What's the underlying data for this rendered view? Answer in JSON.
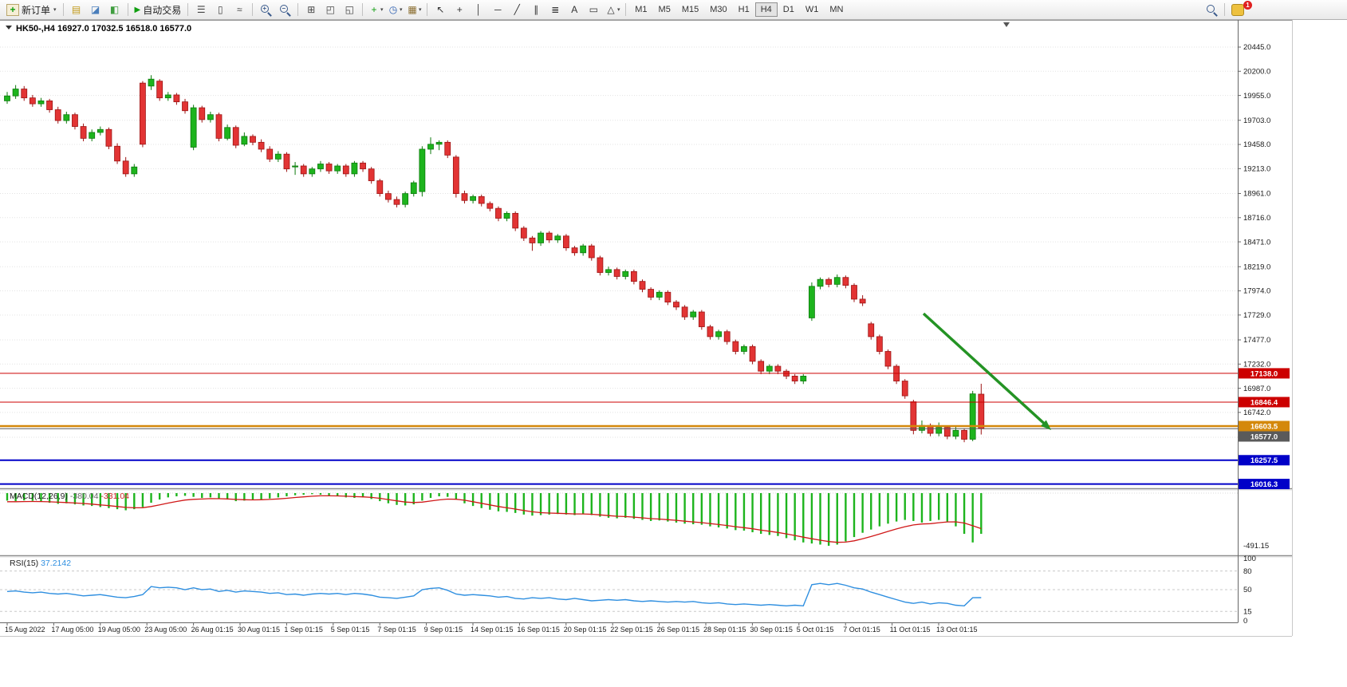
{
  "toolbar": {
    "new_order": {
      "label": "新订单"
    },
    "autotrading": {
      "label": "自动交易"
    },
    "pre_groups": [
      [
        {
          "name": "market-watch-icon",
          "glyph": "▤",
          "color": "#c29a1a"
        },
        {
          "name": "data-window-icon",
          "glyph": "◪",
          "color": "#4a7ebb"
        },
        {
          "name": "navigator-icon",
          "glyph": "◧",
          "color": "#3f9e3f"
        }
      ]
    ],
    "icon_groups": [
      [
        {
          "name": "bar-chart-icon",
          "glyph": "☰",
          "color": "#444"
        },
        {
          "name": "candlestick-chart-icon",
          "glyph": "▯",
          "color": "#444"
        },
        {
          "name": "line-chart-icon",
          "glyph": "≈",
          "color": "#444"
        }
      ],
      [
        {
          "name": "zoom-in-icon",
          "type": "mag",
          "char": "+"
        },
        {
          "name": "zoom-out-icon",
          "type": "mag",
          "char": "−"
        }
      ],
      [
        {
          "name": "tile-windows-icon",
          "glyph": "⊞",
          "color": "#444"
        },
        {
          "name": "cascade-windows-icon",
          "glyph": "◰",
          "color": "#444"
        },
        {
          "name": "arrange-windows-icon",
          "glyph": "◱",
          "color": "#444"
        }
      ],
      [
        {
          "name": "add-indicator-icon",
          "glyph": "+",
          "color": "#0f9e0f",
          "caret": true
        },
        {
          "name": "period-icon",
          "glyph": "◷",
          "color": "#2a5db0",
          "caret": true
        },
        {
          "name": "template-icon",
          "glyph": "▦",
          "color": "#8a6d2f",
          "caret": true
        }
      ],
      [
        {
          "name": "cursor-icon",
          "glyph": "↖",
          "color": "#333"
        },
        {
          "name": "crosshair-icon",
          "glyph": "+",
          "color": "#333"
        },
        {
          "name": "vertical-line-icon",
          "glyph": "│",
          "color": "#333"
        },
        {
          "name": "horizontal-line-icon",
          "glyph": "─",
          "color": "#333"
        },
        {
          "name": "trendline-icon",
          "glyph": "╱",
          "color": "#333"
        },
        {
          "name": "channel-icon",
          "glyph": "∥",
          "color": "#333"
        },
        {
          "name": "fibonacci-icon",
          "glyph": "≣",
          "color": "#333"
        },
        {
          "name": "text-icon",
          "glyph": "A",
          "color": "#333"
        },
        {
          "name": "text-label-icon",
          "glyph": "▭",
          "color": "#333"
        },
        {
          "name": "shapes-icon",
          "glyph": "△",
          "color": "#333",
          "caret": true
        }
      ]
    ],
    "timeframes": {
      "items": [
        "M1",
        "M5",
        "M15",
        "M30",
        "H1",
        "H4",
        "D1",
        "W1",
        "MN"
      ],
      "active": "H4"
    },
    "community": {
      "badge": "1"
    }
  },
  "chart": {
    "title": {
      "symbol": "HK50-,H4",
      "open": "16927.0",
      "high": "17032.5",
      "low": "16518.0",
      "close": "16577.0"
    },
    "colors": {
      "up": "#1db41d",
      "up_stroke": "#0d7a0d",
      "down": "#e23434",
      "down_stroke": "#9d1414",
      "arrow": "#249324",
      "rsi_line": "#2f8fe0",
      "macd_bar": "#1db41d",
      "macd_signal": "#d01818"
    },
    "hlines": [
      {
        "price": 17138.0,
        "label": "17138.0",
        "color": "#cc0000",
        "width": 1
      },
      {
        "price": 16846.4,
        "label": "16846.4",
        "color": "#cc0000",
        "width": 1
      },
      {
        "price": 16603.5,
        "label": "16603.5",
        "color": "#d4880b",
        "width": 2.5
      },
      {
        "price": 16577.0,
        "label": "16577.0",
        "color": "#5a5a5a",
        "width": 1
      },
      {
        "price": 16257.5,
        "label": "16257.5",
        "color": "#0000c8",
        "width": 2
      },
      {
        "price": 16016.3,
        "label": "16016.3",
        "color": "#0000c8",
        "width": 2
      }
    ]
  },
  "macd": {
    "name": "MACD(12,26,9)",
    "main": "-380.04",
    "signal": "-331.04",
    "min_label": "-491.15"
  },
  "rsi": {
    "name": "RSI(15)",
    "value": "37.2142",
    "levels": [
      "100",
      "80",
      "50",
      "15",
      "0"
    ]
  },
  "chart_data": {
    "type": "candlestick",
    "symbol": "HK50-",
    "period": "H4",
    "y_ticks": [
      "20445.0",
      "20200.0",
      "19955.0",
      "19703.0",
      "19458.0",
      "19213.0",
      "18961.0",
      "18716.0",
      "18471.0",
      "18219.0",
      "17974.0",
      "17729.0",
      "17477.0",
      "17232.0",
      "16987.0",
      "16742.0",
      "16490.0"
    ],
    "x_labels": [
      "15 Aug 2022",
      "17 Aug 05:00",
      "19 Aug 05:00",
      "23 Aug 05:00",
      "26 Aug 01:15",
      "30 Aug 01:15",
      "1 Sep 01:15",
      "5 Sep 01:15",
      "7 Sep 01:15",
      "9 Sep 01:15",
      "14 Sep 01:15",
      "16 Sep 01:15",
      "20 Sep 01:15",
      "22 Sep 01:15",
      "26 Sep 01:15",
      "28 Sep 01:15",
      "30 Sep 01:15",
      "5 Oct 01:15",
      "7 Oct 01:15",
      "11 Oct 01:15",
      "13 Oct 01:15"
    ],
    "candles": [
      [
        19900,
        19990,
        19870,
        19950
      ],
      [
        19950,
        20060,
        19920,
        20020
      ],
      [
        20020,
        20050,
        19900,
        19930
      ],
      [
        19930,
        19960,
        19840,
        19870
      ],
      [
        19870,
        19930,
        19840,
        19900
      ],
      [
        19900,
        19920,
        19780,
        19810
      ],
      [
        19810,
        19840,
        19670,
        19700
      ],
      [
        19700,
        19790,
        19670,
        19760
      ],
      [
        19760,
        19780,
        19610,
        19640
      ],
      [
        19640,
        19670,
        19490,
        19520
      ],
      [
        19520,
        19610,
        19490,
        19580
      ],
      [
        19580,
        19640,
        19550,
        19610
      ],
      [
        19610,
        19630,
        19410,
        19440
      ],
      [
        19440,
        19470,
        19260,
        19290
      ],
      [
        19290,
        19330,
        19130,
        19160
      ],
      [
        19160,
        19260,
        19130,
        19230
      ],
      [
        20080,
        20100,
        19430,
        19460
      ],
      [
        20050,
        20160,
        20010,
        20120
      ],
      [
        20100,
        20120,
        19900,
        19930
      ],
      [
        19930,
        19990,
        19900,
        19960
      ],
      [
        19960,
        19980,
        19860,
        19890
      ],
      [
        19890,
        19920,
        19770,
        19800
      ],
      [
        19430,
        19860,
        19400,
        19830
      ],
      [
        19830,
        19850,
        19680,
        19710
      ],
      [
        19710,
        19790,
        19680,
        19760
      ],
      [
        19760,
        19780,
        19490,
        19520
      ],
      [
        19520,
        19660,
        19500,
        19630
      ],
      [
        19630,
        19650,
        19420,
        19450
      ],
      [
        19460,
        19580,
        19440,
        19540
      ],
      [
        19540,
        19560,
        19450,
        19480
      ],
      [
        19480,
        19510,
        19380,
        19410
      ],
      [
        19410,
        19440,
        19280,
        19310
      ],
      [
        19310,
        19390,
        19280,
        19360
      ],
      [
        19360,
        19380,
        19180,
        19210
      ],
      [
        19230,
        19280,
        19150,
        19240
      ],
      [
        19240,
        19260,
        19130,
        19160
      ],
      [
        19160,
        19230,
        19130,
        19210
      ],
      [
        19210,
        19290,
        19180,
        19260
      ],
      [
        19260,
        19280,
        19160,
        19190
      ],
      [
        19190,
        19260,
        19160,
        19240
      ],
      [
        19240,
        19260,
        19130,
        19160
      ],
      [
        19160,
        19290,
        19130,
        19270
      ],
      [
        19270,
        19290,
        19180,
        19210
      ],
      [
        19210,
        19230,
        19060,
        19090
      ],
      [
        19090,
        19110,
        18930,
        18960
      ],
      [
        18960,
        18990,
        18870,
        18900
      ],
      [
        18900,
        18930,
        18820,
        18850
      ],
      [
        18850,
        18980,
        18820,
        18960
      ],
      [
        18960,
        19090,
        18930,
        19070
      ],
      [
        18980,
        19440,
        18930,
        19410
      ],
      [
        19410,
        19530,
        19360,
        19460
      ],
      [
        19460,
        19500,
        19400,
        19480
      ],
      [
        19480,
        19500,
        19320,
        19350
      ],
      [
        19330,
        19350,
        18920,
        18960
      ],
      [
        18960,
        18990,
        18860,
        18890
      ],
      [
        18890,
        18950,
        18860,
        18930
      ],
      [
        18930,
        18950,
        18830,
        18860
      ],
      [
        18860,
        18880,
        18780,
        18810
      ],
      [
        18810,
        18830,
        18680,
        18710
      ],
      [
        18710,
        18780,
        18680,
        18760
      ],
      [
        18760,
        18780,
        18580,
        18610
      ],
      [
        18610,
        18630,
        18480,
        18510
      ],
      [
        18510,
        18530,
        18380,
        18460
      ],
      [
        18460,
        18580,
        18430,
        18560
      ],
      [
        18560,
        18580,
        18460,
        18490
      ],
      [
        18490,
        18550,
        18460,
        18530
      ],
      [
        18530,
        18550,
        18380,
        18410
      ],
      [
        18410,
        18430,
        18330,
        18360
      ],
      [
        18360,
        18450,
        18330,
        18430
      ],
      [
        18430,
        18450,
        18280,
        18310
      ],
      [
        18310,
        18330,
        18130,
        18160
      ],
      [
        18160,
        18220,
        18130,
        18190
      ],
      [
        18190,
        18210,
        18090,
        18120
      ],
      [
        18120,
        18190,
        18090,
        18170
      ],
      [
        18170,
        18190,
        18040,
        18070
      ],
      [
        18070,
        18090,
        17960,
        17990
      ],
      [
        17990,
        18010,
        17880,
        17910
      ],
      [
        17910,
        17980,
        17880,
        17960
      ],
      [
        17960,
        17980,
        17830,
        17860
      ],
      [
        17860,
        17880,
        17780,
        17810
      ],
      [
        17810,
        17830,
        17680,
        17710
      ],
      [
        17710,
        17780,
        17680,
        17760
      ],
      [
        17760,
        17780,
        17580,
        17610
      ],
      [
        17610,
        17630,
        17480,
        17510
      ],
      [
        17510,
        17580,
        17480,
        17560
      ],
      [
        17560,
        17580,
        17430,
        17460
      ],
      [
        17460,
        17480,
        17330,
        17360
      ],
      [
        17360,
        17430,
        17330,
        17410
      ],
      [
        17410,
        17430,
        17230,
        17260
      ],
      [
        17260,
        17280,
        17130,
        17160
      ],
      [
        17160,
        17230,
        17130,
        17210
      ],
      [
        17210,
        17230,
        17130,
        17160
      ],
      [
        17160,
        17180,
        17080,
        17110
      ],
      [
        17110,
        17130,
        17030,
        17060
      ],
      [
        17060,
        17130,
        17030,
        17110
      ],
      [
        17700,
        18060,
        17670,
        18020
      ],
      [
        18020,
        18110,
        17990,
        18090
      ],
      [
        18090,
        18110,
        18010,
        18040
      ],
      [
        18040,
        18140,
        18010,
        18110
      ],
      [
        18110,
        18130,
        18000,
        18030
      ],
      [
        18030,
        18050,
        17860,
        17890
      ],
      [
        17890,
        17930,
        17820,
        17850
      ],
      [
        17640,
        17660,
        17480,
        17510
      ],
      [
        17510,
        17530,
        17330,
        17360
      ],
      [
        17360,
        17380,
        17180,
        17210
      ],
      [
        17210,
        17230,
        17030,
        17060
      ],
      [
        17060,
        17080,
        16880,
        16910
      ],
      [
        16850,
        16870,
        16520,
        16560
      ],
      [
        16560,
        16660,
        16530,
        16610
      ],
      [
        16610,
        16630,
        16500,
        16530
      ],
      [
        16530,
        16640,
        16500,
        16590
      ],
      [
        16590,
        16610,
        16470,
        16500
      ],
      [
        16500,
        16610,
        16470,
        16560
      ],
      [
        16560,
        16580,
        16440,
        16470
      ],
      [
        16470,
        16960,
        16450,
        16930
      ],
      [
        16927,
        17032.5,
        16518,
        16577
      ]
    ],
    "macd_main": [
      -70,
      -75,
      -68,
      -72,
      -80,
      -90,
      -100,
      -95,
      -105,
      -115,
      -120,
      -130,
      -140,
      -150,
      -160,
      -150,
      -130,
      -90,
      -60,
      -40,
      -30,
      -25,
      -35,
      -45,
      -40,
      -55,
      -60,
      -75,
      -70,
      -65,
      -60,
      -50,
      -40,
      -30,
      -20,
      -15,
      -10,
      -15,
      -25,
      -30,
      -40,
      -45,
      -40,
      -55,
      -75,
      -95,
      -110,
      -115,
      -105,
      -70,
      -45,
      -30,
      -35,
      -60,
      -95,
      -120,
      -140,
      -155,
      -170,
      -175,
      -185,
      -200,
      -210,
      -205,
      -200,
      -195,
      -200,
      -205,
      -195,
      -205,
      -220,
      -230,
      -235,
      -230,
      -240,
      -250,
      -260,
      -255,
      -265,
      -275,
      -285,
      -290,
      -295,
      -310,
      -320,
      -330,
      -345,
      -350,
      -365,
      -380,
      -390,
      -400,
      -420,
      -440,
      -460,
      -470,
      -480,
      -491,
      -480,
      -450,
      -410,
      -370,
      -340,
      -310,
      -285,
      -265,
      -250,
      -260,
      -275,
      -260,
      -250,
      -265,
      -310,
      -380,
      -460,
      -380
    ],
    "macd_signal": [
      -80,
      -80,
      -79,
      -78,
      -79,
      -81,
      -85,
      -88,
      -92,
      -97,
      -103,
      -110,
      -117,
      -125,
      -133,
      -137,
      -136,
      -125,
      -110,
      -93,
      -78,
      -65,
      -58,
      -55,
      -51,
      -52,
      -54,
      -59,
      -62,
      -63,
      -62,
      -59,
      -54,
      -48,
      -41,
      -35,
      -29,
      -25,
      -25,
      -26,
      -29,
      -33,
      -35,
      -40,
      -48,
      -60,
      -72,
      -83,
      -88,
      -84,
      -74,
      -63,
      -56,
      -57,
      -66,
      -80,
      -95,
      -110,
      -125,
      -137,
      -149,
      -162,
      -174,
      -182,
      -186,
      -188,
      -191,
      -194,
      -194,
      -197,
      -203,
      -210,
      -216,
      -219,
      -224,
      -231,
      -238,
      -242,
      -248,
      -254,
      -262,
      -269,
      -275,
      -284,
      -293,
      -302,
      -313,
      -322,
      -333,
      -345,
      -356,
      -367,
      -380,
      -395,
      -411,
      -426,
      -439,
      -452,
      -459,
      -457,
      -445,
      -426,
      -405,
      -381,
      -357,
      -334,
      -313,
      -297,
      -288,
      -285,
      -276,
      -269,
      -268,
      -279,
      -304,
      -331
    ],
    "rsi_values": [
      47,
      48,
      46,
      45,
      46,
      44,
      43,
      44,
      42,
      40,
      41,
      42,
      40,
      38,
      37,
      39,
      42,
      55,
      53,
      54,
      53,
      50,
      53,
      50,
      51,
      47,
      49,
      46,
      48,
      47,
      46,
      44,
      45,
      42,
      43,
      41,
      43,
      44,
      43,
      44,
      42,
      44,
      43,
      41,
      38,
      37,
      36,
      38,
      40,
      50,
      52,
      53,
      49,
      43,
      41,
      42,
      41,
      40,
      38,
      39,
      36,
      35,
      37,
      36,
      37,
      35,
      34,
      36,
      34,
      32,
      33,
      34,
      33,
      34,
      32,
      31,
      32,
      31,
      30,
      31,
      30,
      31,
      29,
      28,
      29,
      27,
      26,
      27,
      26,
      25,
      26,
      25,
      24,
      25,
      24,
      58,
      60,
      58,
      60,
      57,
      53,
      51,
      46,
      42,
      38,
      34,
      30,
      28,
      30,
      27,
      29,
      28,
      25,
      24,
      37,
      37.21
    ]
  }
}
